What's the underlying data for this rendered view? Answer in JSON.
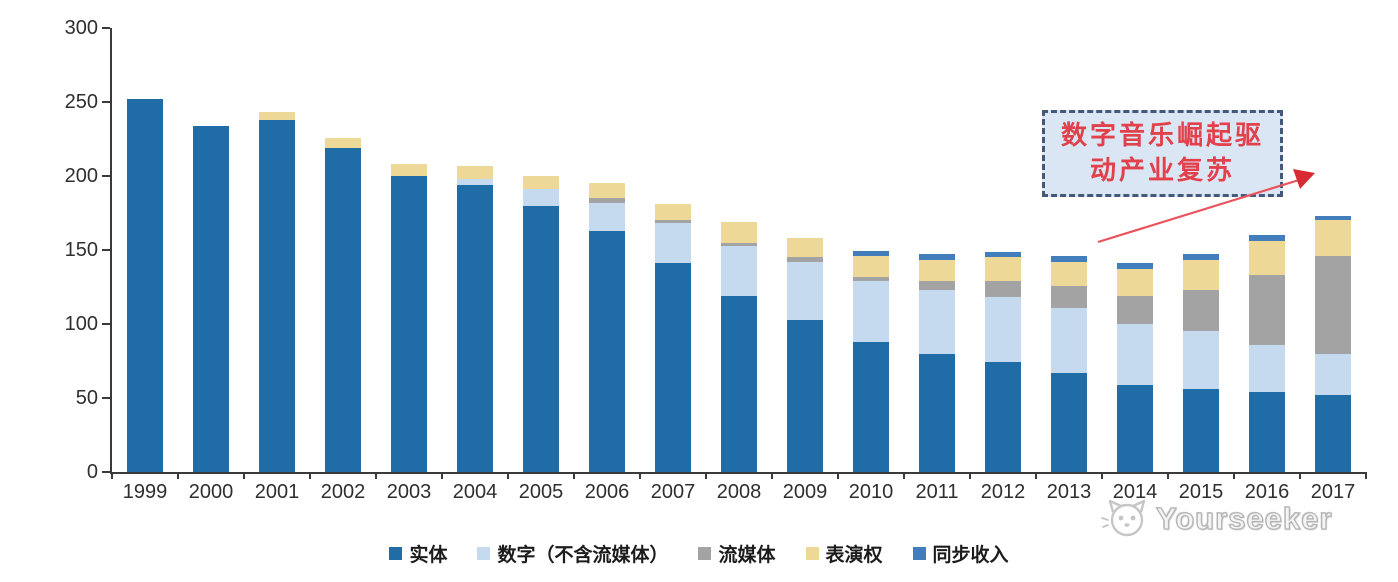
{
  "chart_data": {
    "type": "bar",
    "stacked": true,
    "title": "",
    "xlabel": "",
    "ylabel": "",
    "ylim": [
      0,
      300
    ],
    "yticks": [
      "0",
      "50",
      "100",
      "150",
      "200",
      "250",
      "300"
    ],
    "grid": false,
    "legend_position": "bottom",
    "categories": [
      "1999",
      "2000",
      "2001",
      "2002",
      "2003",
      "2004",
      "2005",
      "2006",
      "2007",
      "2008",
      "2009",
      "2010",
      "2011",
      "2012",
      "2013",
      "2014",
      "2015",
      "2016",
      "2017"
    ],
    "series": [
      {
        "name": "实体",
        "color": "#1F6CA7",
        "values": [
          252,
          234,
          238,
          219,
          200,
          194,
          180,
          163,
          141,
          119,
          103,
          88,
          80,
          74,
          67,
          59,
          56,
          54,
          52
        ]
      },
      {
        "name": "数字（不含流媒体）",
        "color": "#C5DAEF",
        "values": [
          0,
          0,
          0,
          0,
          0,
          4,
          11,
          19,
          27,
          34,
          39,
          41,
          43,
          44,
          44,
          41,
          39,
          32,
          28
        ]
      },
      {
        "name": "流媒体",
        "color": "#A3A3A3",
        "values": [
          0,
          0,
          0,
          0,
          0,
          0,
          0,
          3,
          2,
          2,
          3,
          3,
          6,
          11,
          15,
          19,
          28,
          47,
          66
        ]
      },
      {
        "name": "表演权",
        "color": "#EED898",
        "values": [
          0,
          0,
          5,
          7,
          8,
          9,
          9,
          10,
          11,
          14,
          13,
          14,
          14,
          16,
          16,
          18,
          20,
          23,
          24
        ]
      },
      {
        "name": "同步收入",
        "color": "#427EBC",
        "values": [
          0,
          0,
          0,
          0,
          0,
          0,
          0,
          0,
          0,
          0,
          0,
          3,
          4,
          4,
          4,
          4,
          4,
          4,
          3
        ]
      }
    ]
  },
  "annotation": {
    "line1": "数字音乐崛起驱",
    "line2": "动产业复苏",
    "text_color": "#E2404A",
    "box_fill": "#DAE6F4",
    "box_border": "#44597A",
    "arrow_color": "#E8545E",
    "arrowhead_color": "#D92B33"
  },
  "watermark": {
    "text": "Yourseeker",
    "logo": "cat-face-logo",
    "color": "#bdbdbd"
  },
  "axis_color": "#3a3a3a"
}
